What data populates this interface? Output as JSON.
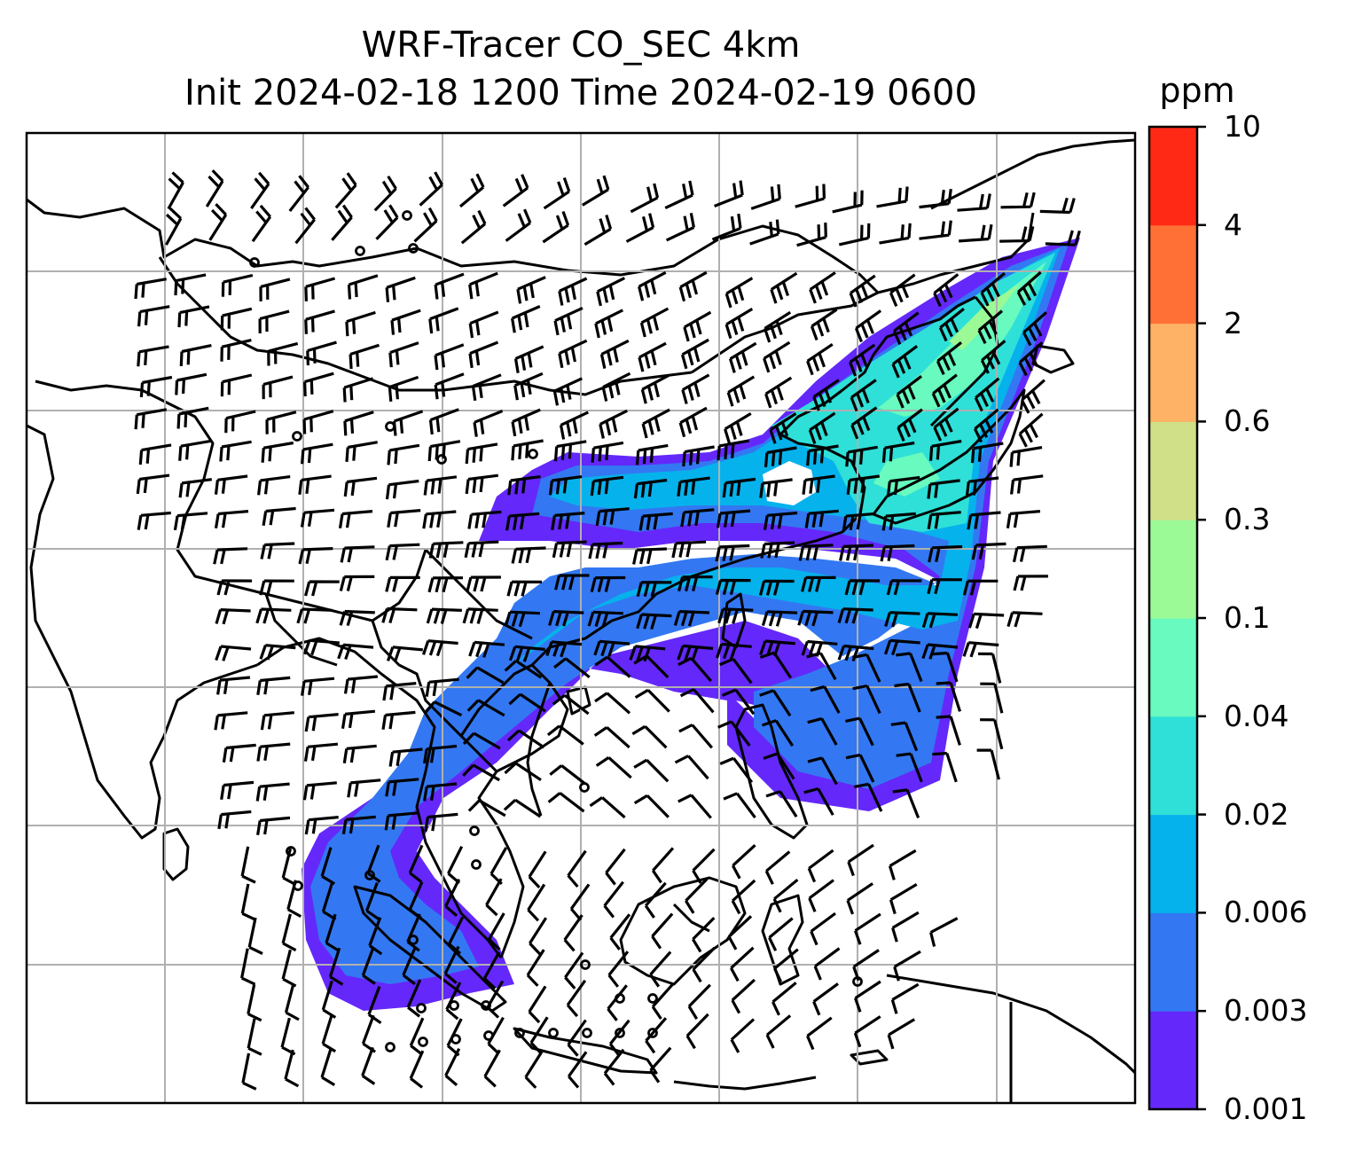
{
  "title": {
    "line1": "WRF-Tracer CO_SEC 4km",
    "line2": "Init 2024-02-18 1200 Time 2024-02-19 0600"
  },
  "colorbar": {
    "unit": "ppm",
    "levels": [
      "0.001",
      "0.003",
      "0.006",
      "0.02",
      "0.04",
      "0.1",
      "0.3",
      "0.6",
      "2",
      "4",
      "10"
    ],
    "colors": [
      "#6428fa",
      "#3378f2",
      "#06b2ec",
      "#2ee0d8",
      "#68fabe",
      "#9bfa96",
      "#d0e088",
      "#fdb265",
      "#fe7035",
      "#ff2916"
    ]
  },
  "map": {
    "features": [
      "coastlines",
      "country-borders",
      "gridlines",
      "wind-barbs",
      "tracer-plume"
    ],
    "plume_colors": [
      "#6428fa",
      "#3378f2",
      "#06b2ec",
      "#2ee0d8",
      "#68fabe",
      "#9bfa96"
    ]
  }
}
